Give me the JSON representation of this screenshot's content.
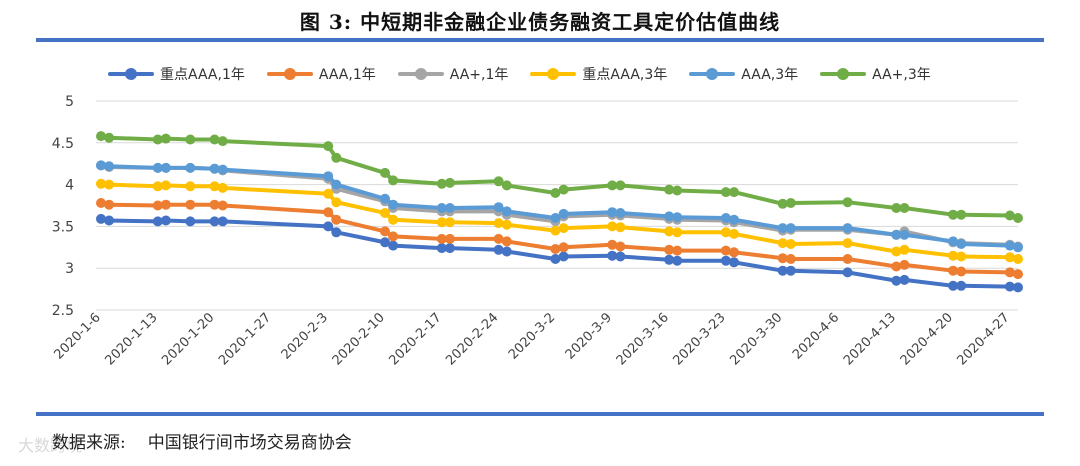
{
  "title": "图 3:  中短期非金融企业债务融资工具定价估值曲线",
  "source": {
    "label": "数据来源:",
    "text": "中国银行间市场交易商协会"
  },
  "watermark": "大数跨境",
  "colors": {
    "rule": "#4472c4",
    "grid": "#d9d9d9"
  },
  "chart_data": {
    "type": "line",
    "ylim": [
      2.5,
      5
    ],
    "yticks": [
      "5",
      "4.5",
      "4",
      "3.5",
      "3",
      "2.5"
    ],
    "ytick_values": [
      5,
      4.5,
      4,
      3.5,
      3,
      2.5
    ],
    "xticks": [
      "2020-1-6",
      "2020-1-13",
      "2020-1-20",
      "2020-1-27",
      "2020-2-3",
      "2020-2-10",
      "2020-2-17",
      "2020-2-24",
      "2020-3-2",
      "2020-3-9",
      "2020-3-16",
      "2020-3-23",
      "2020-3-30",
      "2020-4-6",
      "2020-4-13",
      "2020-4-20",
      "2020-4-27"
    ],
    "x": [
      "2020-1-6",
      "2020-1-7",
      "2020-1-13",
      "2020-1-14",
      "2020-1-17",
      "2020-1-20",
      "2020-1-21",
      "2020-2-3",
      "2020-2-4",
      "2020-2-10",
      "2020-2-11",
      "2020-2-17",
      "2020-2-18",
      "2020-2-24",
      "2020-2-25",
      "2020-3-2",
      "2020-3-3",
      "2020-3-9",
      "2020-3-10",
      "2020-3-16",
      "2020-3-17",
      "2020-3-23",
      "2020-3-24",
      "2020-3-30",
      "2020-3-31",
      "2020-4-7",
      "2020-4-13",
      "2020-4-14",
      "2020-4-20",
      "2020-4-21",
      "2020-4-27",
      "2020-4-28"
    ],
    "grid": true,
    "legend": "top",
    "series": [
      {
        "name": "重点AAA,1年",
        "color": "#4472c4",
        "values": [
          3.59,
          3.57,
          3.56,
          3.57,
          3.56,
          3.56,
          3.56,
          3.5,
          3.43,
          3.31,
          3.27,
          3.24,
          3.24,
          3.22,
          3.2,
          3.11,
          3.14,
          3.15,
          3.14,
          3.1,
          3.09,
          3.09,
          3.07,
          2.97,
          2.97,
          2.95,
          2.85,
          2.86,
          2.79,
          2.79,
          2.78,
          2.77
        ]
      },
      {
        "name": "AAA,1年",
        "color": "#ed7d31",
        "values": [
          3.78,
          3.76,
          3.75,
          3.76,
          3.76,
          3.76,
          3.75,
          3.67,
          3.58,
          3.44,
          3.38,
          3.35,
          3.35,
          3.35,
          3.32,
          3.23,
          3.25,
          3.28,
          3.26,
          3.22,
          3.21,
          3.21,
          3.19,
          3.12,
          3.11,
          3.11,
          3.02,
          3.04,
          2.97,
          2.96,
          2.95,
          2.93
        ]
      },
      {
        "name": "AA+,1年",
        "color": "#a5a5a5",
        "values": [
          4.23,
          4.21,
          4.2,
          4.2,
          4.2,
          4.19,
          4.17,
          4.07,
          3.95,
          3.8,
          3.72,
          3.68,
          3.68,
          3.68,
          3.64,
          3.56,
          3.62,
          3.64,
          3.63,
          3.59,
          3.58,
          3.57,
          3.55,
          3.45,
          3.46,
          3.46,
          3.4,
          3.44,
          3.31,
          3.3,
          3.28,
          3.26
        ]
      },
      {
        "name": "重点AAA,3年",
        "color": "#ffc000",
        "values": [
          4.01,
          4.0,
          3.98,
          3.99,
          3.98,
          3.98,
          3.96,
          3.89,
          3.79,
          3.66,
          3.58,
          3.55,
          3.55,
          3.54,
          3.52,
          3.45,
          3.48,
          3.5,
          3.49,
          3.44,
          3.43,
          3.43,
          3.41,
          3.3,
          3.29,
          3.3,
          3.2,
          3.22,
          3.15,
          3.14,
          3.13,
          3.11
        ]
      },
      {
        "name": "AAA,3年",
        "color": "#5b9bd5",
        "values": [
          4.23,
          4.22,
          4.2,
          4.2,
          4.2,
          4.19,
          4.18,
          4.1,
          4.0,
          3.83,
          3.76,
          3.72,
          3.72,
          3.73,
          3.68,
          3.6,
          3.65,
          3.67,
          3.66,
          3.62,
          3.61,
          3.6,
          3.58,
          3.48,
          3.48,
          3.48,
          3.4,
          3.4,
          3.32,
          3.29,
          3.27,
          3.25
        ]
      },
      {
        "name": "AA+,3年",
        "color": "#70ad47",
        "values": [
          4.58,
          4.56,
          4.54,
          4.55,
          4.54,
          4.54,
          4.52,
          4.46,
          4.32,
          4.14,
          4.05,
          4.01,
          4.02,
          4.04,
          3.99,
          3.9,
          3.94,
          3.99,
          3.99,
          3.94,
          3.93,
          3.91,
          3.91,
          3.77,
          3.78,
          3.79,
          3.72,
          3.72,
          3.64,
          3.64,
          3.63,
          3.6
        ]
      }
    ]
  }
}
